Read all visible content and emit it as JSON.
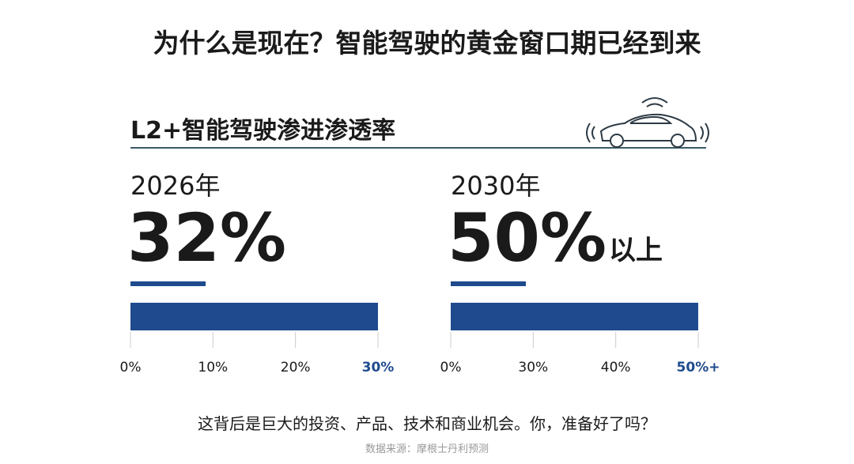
{
  "header": {
    "title": "为什么是现在？智能驾驶的黄金窗口期已经到来"
  },
  "section": {
    "title": "L2+智能驾驶渗进渗透率"
  },
  "panels": [
    {
      "year": "2026年",
      "value": "32%",
      "ticks": [
        "0%",
        "10%",
        "20%",
        "30%"
      ]
    },
    {
      "year": "2030年",
      "value": "50%",
      "suffix": "以上",
      "ticks": [
        "0%",
        "30%",
        "40%",
        "50%+"
      ]
    }
  ],
  "footer": {
    "text": "这背后是巨大的投资、产品、技术和商业机会。你，准备好了吗？",
    "source": "数据来源：摩根士丹利预测"
  }
}
